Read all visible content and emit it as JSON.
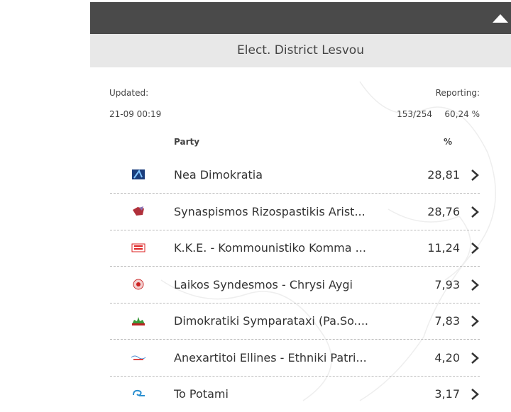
{
  "header": {
    "title": "Elect. District Lesvou"
  },
  "updated": {
    "label": "Updated:",
    "value": "21-09 00:19"
  },
  "reporting": {
    "label": "Reporting:",
    "count": "153/254",
    "percent": "60,24 %"
  },
  "table": {
    "columns": [
      "Party",
      "%"
    ],
    "rows": [
      [
        "Nea Dimokratia",
        "28,81"
      ],
      [
        "Synaspismos Rizospastikis Arist...",
        "28,76"
      ],
      [
        "K.K.E. - Kommounistiko Komma ...",
        "11,24"
      ],
      [
        "Laikos Syndesmos - Chrysi Aygi",
        "7,93"
      ],
      [
        "Dimokratiki Symparataxi (Pa.So....",
        "7,83"
      ],
      [
        "Anexartitoi Ellines - Ethniki Patri...",
        "4,20"
      ],
      [
        "To Potami",
        "3,17"
      ]
    ]
  }
}
